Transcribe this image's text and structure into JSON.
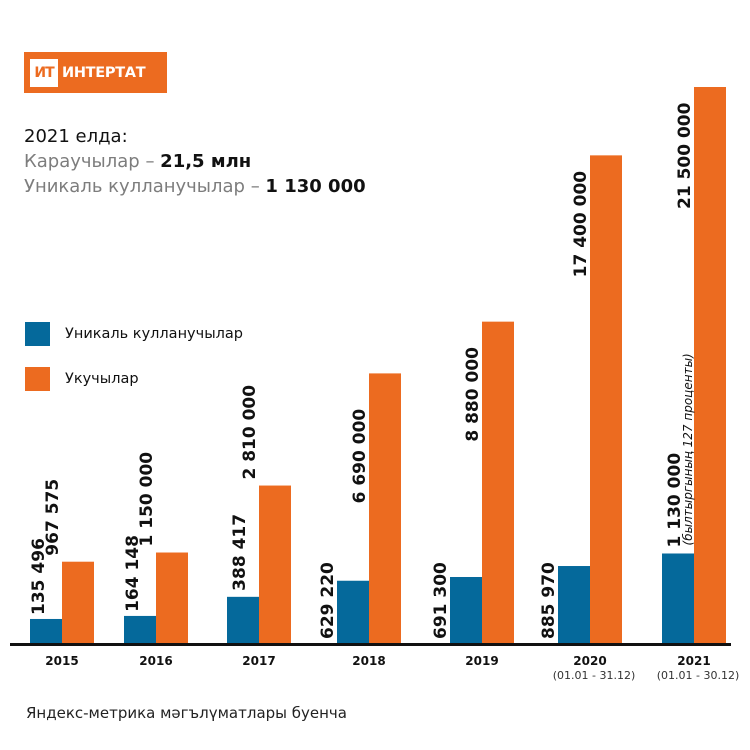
{
  "logo": {
    "mark": "ИТ",
    "name": "ИНТЕРТАТ"
  },
  "summary": {
    "title": "2021 елда:",
    "line1_label": "Караучылар – ",
    "line1_value": "21,5 млн",
    "line2_label": "Уникаль кулланучылар – ",
    "line2_value": "1 130 000"
  },
  "footer": "Яндекс-метрика мәгълүматлары буенча",
  "colors": {
    "unique": "#05699b",
    "readers": "#ec6b20",
    "brand": "#ec6b20"
  },
  "chart_data": {
    "type": "bar",
    "title": "",
    "xlabel": "",
    "ylabel": "",
    "grid": false,
    "legend_position": "left",
    "categories": [
      "2015",
      "2016",
      "2017",
      "2018",
      "2019",
      "2020",
      "2021"
    ],
    "category_notes": [
      "",
      "",
      "",
      "",
      "",
      "(01.01 - 31.12)",
      "(01.01 - 30.12)"
    ],
    "series": [
      {
        "name": "Уникаль кулланучылар",
        "color": "#05699b",
        "values": [
          135496,
          164148,
          388417,
          629220,
          691300,
          885970,
          1130000
        ],
        "labels": [
          "135 496",
          "164 148",
          "388 417",
          "629 220",
          "691 300",
          "885 970",
          "1 130 000"
        ]
      },
      {
        "name": "Укучылар",
        "color": "#ec6b20",
        "values": [
          967575,
          1150000,
          2810000,
          6690000,
          8880000,
          17400000,
          21500000
        ],
        "labels": [
          "967 575",
          "1 150 000",
          "2 810 000",
          "6 690 000",
          "8 880 000",
          "17 400 000",
          "21 500 000"
        ]
      }
    ],
    "annotations": [
      "(былтыргының 127 проценты)"
    ]
  }
}
